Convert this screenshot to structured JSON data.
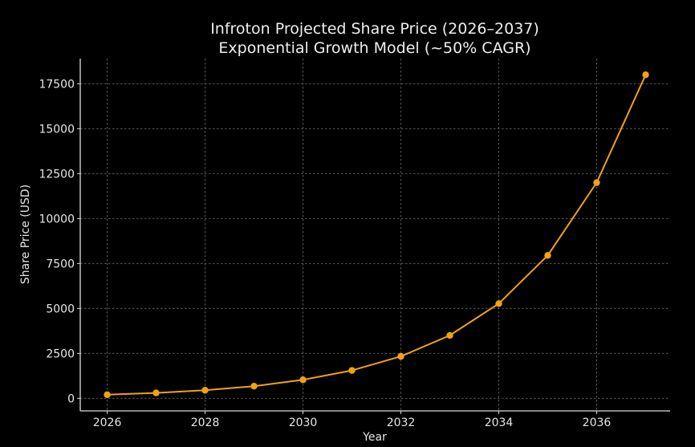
{
  "chart_data": {
    "type": "line",
    "title": "Infroton Projected Share Price (2026–2037)",
    "subtitle": "Exponential Growth Model (~50% CAGR)",
    "xlabel": "Year",
    "ylabel": "Share Price (USD)",
    "x": [
      2026,
      2027,
      2028,
      2029,
      2030,
      2031,
      2032,
      2033,
      2034,
      2035,
      2036,
      2037
    ],
    "series": [
      {
        "name": "Share Price",
        "color": "#f0a30f",
        "marker": "circle",
        "values": [
          200,
          300,
          450,
          675,
          1030,
          1550,
          2330,
          3500,
          5270,
          7950,
          12000,
          18000
        ]
      }
    ],
    "xticks": [
      2026,
      2028,
      2030,
      2032,
      2034,
      2036
    ],
    "xtick_labels": [
      "2026",
      "2028",
      "2030",
      "2032",
      "2034",
      "2036"
    ],
    "yticks": [
      0,
      2500,
      5000,
      7500,
      10000,
      12500,
      15000,
      17500
    ],
    "ytick_labels": [
      "0",
      "2500",
      "5000",
      "7500",
      "10000",
      "12500",
      "15000",
      "17500"
    ],
    "xlim": [
      2025.45,
      2037.5
    ],
    "ylim": [
      -700,
      18900
    ],
    "grid": true,
    "legend": "none",
    "background": "#000000"
  }
}
